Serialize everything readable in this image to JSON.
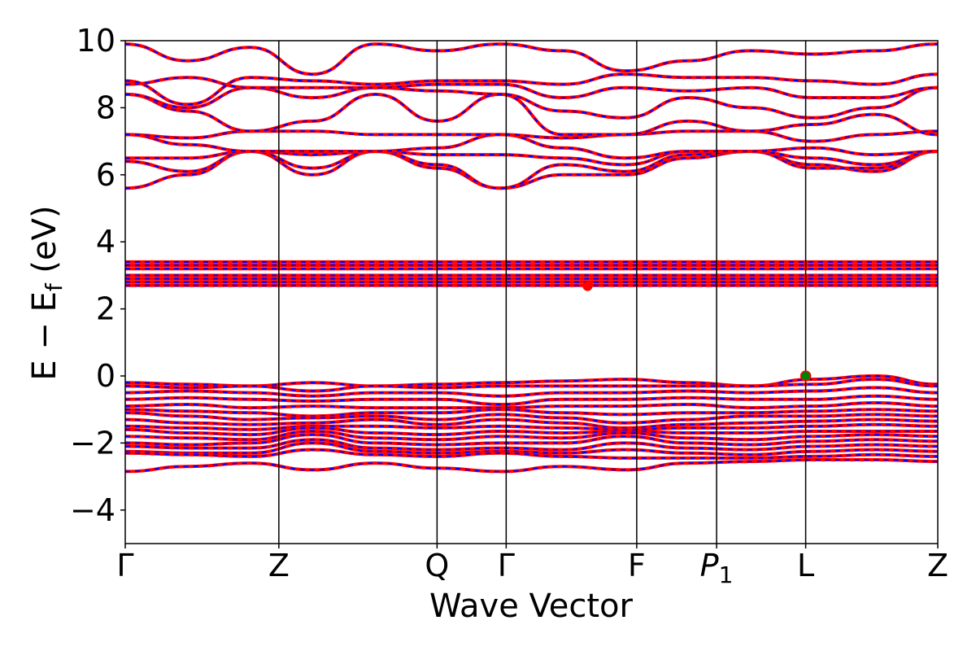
{
  "chart_data": {
    "type": "line",
    "title": "",
    "xlabel": "Wave Vector",
    "ylabel_main": "E − E",
    "ylabel_sub": "f",
    "ylabel_unit": " (eV)",
    "ylim": [
      -5,
      10
    ],
    "yticks": [
      -4,
      -2,
      0,
      2,
      4,
      6,
      8,
      10
    ],
    "ytick_labels": [
      "−4",
      "−2",
      "0",
      "2",
      "4",
      "6",
      "8",
      "10"
    ],
    "kpath_positions": [
      0,
      1.0,
      2.03,
      2.48,
      3.33,
      3.85,
      4.43,
      5.29
    ],
    "kpath_labels": [
      "Γ",
      "Z",
      "Q",
      "Γ",
      "F",
      "P",
      "L",
      "Z"
    ],
    "kpath_label_subscripts": [
      "",
      "",
      "",
      "",
      "",
      "1",
      "",
      ""
    ],
    "xlim": [
      0,
      5.29
    ],
    "grid": false,
    "colors": {
      "band_primary": "#ff0000",
      "band_overlay": "#0000ff",
      "cbm_marker": "#ff0000",
      "vbm_marker": "#008000",
      "vline": "#000000"
    },
    "cbm_point": {
      "x": 3.01,
      "y": 2.68
    },
    "vbm_point": {
      "x": 4.43,
      "y": 0.0
    },
    "series": [
      {
        "values": [
          5.6,
          6.0,
          6.7,
          6.6,
          6.7,
          6.2,
          5.6,
          6.0,
          6.0,
          6.5,
          6.7,
          6.3,
          6.1,
          6.7
        ]
      },
      {
        "values": [
          6.4,
          6.1,
          6.7,
          6.0,
          6.7,
          6.3,
          5.6,
          6.3,
          6.1,
          6.6,
          6.7,
          6.2,
          6.2,
          6.7
        ]
      },
      {
        "values": [
          6.5,
          6.5,
          6.7,
          6.2,
          6.7,
          6.6,
          6.6,
          6.5,
          6.3,
          6.7,
          6.7,
          6.5,
          6.3,
          6.7
        ]
      },
      {
        "values": [
          7.2,
          6.9,
          6.7,
          6.7,
          6.7,
          6.8,
          7.2,
          6.8,
          6.5,
          6.7,
          6.7,
          6.8,
          6.6,
          6.7
        ]
      },
      {
        "values": [
          7.2,
          7.1,
          7.3,
          7.3,
          7.2,
          7.2,
          7.2,
          7.1,
          7.2,
          7.3,
          7.3,
          7.0,
          7.2,
          7.3
        ]
      },
      {
        "values": [
          8.4,
          7.9,
          7.3,
          7.6,
          8.4,
          7.6,
          8.4,
          7.2,
          7.2,
          7.6,
          7.3,
          7.5,
          7.8,
          7.2
        ]
      },
      {
        "values": [
          8.4,
          8.0,
          8.6,
          8.3,
          8.6,
          8.5,
          8.4,
          7.9,
          7.7,
          8.3,
          8.0,
          7.7,
          8.0,
          8.6
        ]
      },
      {
        "values": [
          8.7,
          8.9,
          8.6,
          8.6,
          8.6,
          8.7,
          8.7,
          8.3,
          8.6,
          8.5,
          8.6,
          8.3,
          8.3,
          8.6
        ]
      },
      {
        "values": [
          8.8,
          8.1,
          8.9,
          8.8,
          8.7,
          8.8,
          8.8,
          8.7,
          9.0,
          8.9,
          8.9,
          8.8,
          8.7,
          9.0
        ]
      },
      {
        "values": [
          9.9,
          9.4,
          9.8,
          9.0,
          9.9,
          9.7,
          9.9,
          9.7,
          9.1,
          9.4,
          9.7,
          9.6,
          9.7,
          9.9
        ]
      },
      {
        "values": [
          2.7,
          2.7,
          2.7,
          2.7,
          2.7,
          2.7,
          2.7,
          2.7,
          2.7,
          2.7,
          2.7,
          2.7,
          2.7,
          2.7
        ]
      },
      {
        "values": [
          2.8,
          2.8,
          2.8,
          2.8,
          2.8,
          2.8,
          2.8,
          2.8,
          2.8,
          2.8,
          2.8,
          2.8,
          2.8,
          2.8
        ]
      },
      {
        "values": [
          2.9,
          2.9,
          2.9,
          2.9,
          2.9,
          2.9,
          2.9,
          2.9,
          2.9,
          2.9,
          2.9,
          2.9,
          2.9,
          2.9
        ]
      },
      {
        "values": [
          3.0,
          3.0,
          3.0,
          3.0,
          3.0,
          3.0,
          3.0,
          3.0,
          3.0,
          3.0,
          3.0,
          3.0,
          3.0,
          3.0
        ]
      },
      {
        "values": [
          3.2,
          3.2,
          3.2,
          3.2,
          3.2,
          3.2,
          3.2,
          3.2,
          3.2,
          3.2,
          3.2,
          3.2,
          3.2,
          3.2
        ]
      },
      {
        "values": [
          3.3,
          3.3,
          3.3,
          3.3,
          3.3,
          3.3,
          3.3,
          3.3,
          3.3,
          3.3,
          3.3,
          3.3,
          3.3,
          3.3
        ]
      },
      {
        "values": [
          3.4,
          3.4,
          3.4,
          3.4,
          3.4,
          3.4,
          3.4,
          3.4,
          3.4,
          3.4,
          3.4,
          3.4,
          3.4,
          3.4
        ]
      },
      {
        "values": [
          -0.2,
          -0.25,
          -0.3,
          -0.2,
          -0.3,
          -0.25,
          -0.2,
          -0.15,
          -0.1,
          -0.2,
          -0.3,
          -0.1,
          0.0,
          -0.25
        ]
      },
      {
        "values": [
          -0.3,
          -0.35,
          -0.3,
          -0.45,
          -0.3,
          -0.35,
          -0.3,
          -0.3,
          -0.3,
          -0.3,
          -0.3,
          -0.25,
          -0.1,
          -0.3
        ]
      },
      {
        "values": [
          -0.5,
          -0.45,
          -0.5,
          -0.6,
          -0.5,
          -0.5,
          -0.6,
          -0.5,
          -0.5,
          -0.45,
          -0.5,
          -0.45,
          -0.35,
          -0.5
        ]
      },
      {
        "values": [
          -0.7,
          -0.65,
          -0.7,
          -0.75,
          -0.7,
          -0.7,
          -0.85,
          -0.7,
          -0.7,
          -0.65,
          -0.7,
          -0.7,
          -0.6,
          -0.7
        ]
      },
      {
        "values": [
          -0.9,
          -0.85,
          -0.95,
          -0.9,
          -0.95,
          -0.95,
          -0.95,
          -0.9,
          -0.9,
          -0.85,
          -0.95,
          -0.9,
          -0.8,
          -0.9
        ]
      },
      {
        "values": [
          -1.0,
          -1.05,
          -1.1,
          -1.2,
          -1.1,
          -1.1,
          -1.0,
          -1.1,
          -1.15,
          -1.1,
          -1.1,
          -1.05,
          -1.0,
          -1.05
        ]
      },
      {
        "values": [
          -1.1,
          -1.2,
          -1.3,
          -1.25,
          -1.2,
          -1.3,
          -1.15,
          -1.25,
          -1.4,
          -1.3,
          -1.2,
          -1.2,
          -1.15,
          -1.2
        ]
      },
      {
        "values": [
          -1.3,
          -1.4,
          -1.45,
          -1.4,
          -1.3,
          -1.45,
          -1.3,
          -1.4,
          -1.55,
          -1.45,
          -1.4,
          -1.35,
          -1.3,
          -1.35
        ]
      },
      {
        "values": [
          -1.5,
          -1.55,
          -1.6,
          -1.5,
          -1.5,
          -1.55,
          -1.5,
          -1.55,
          -1.6,
          -1.55,
          -1.55,
          -1.5,
          -1.45,
          -1.5
        ]
      },
      {
        "values": [
          -1.6,
          -1.7,
          -1.75,
          -1.55,
          -1.7,
          -1.75,
          -1.65,
          -1.7,
          -1.65,
          -1.7,
          -1.7,
          -1.65,
          -1.65,
          -1.65
        ]
      },
      {
        "values": [
          -1.8,
          -1.85,
          -1.9,
          -1.65,
          -1.85,
          -1.9,
          -1.8,
          -1.85,
          -1.7,
          -1.85,
          -1.9,
          -1.8,
          -1.75,
          -1.8
        ]
      },
      {
        "values": [
          -2.0,
          -2.05,
          -2.0,
          -1.75,
          -2.0,
          -2.05,
          -2.0,
          -2.0,
          -1.8,
          -2.0,
          -2.05,
          -1.95,
          -1.9,
          -1.95
        ]
      },
      {
        "values": [
          -2.1,
          -2.15,
          -2.15,
          -1.9,
          -2.15,
          -2.2,
          -2.15,
          -2.2,
          -2.0,
          -2.15,
          -2.2,
          -2.1,
          -2.05,
          -2.1
        ]
      },
      {
        "values": [
          -2.25,
          -2.3,
          -2.3,
          -2.0,
          -2.25,
          -2.3,
          -2.25,
          -2.3,
          -2.2,
          -2.3,
          -2.35,
          -2.25,
          -2.2,
          -2.25
        ]
      },
      {
        "values": [
          -2.3,
          -2.35,
          -2.4,
          -2.2,
          -2.35,
          -2.4,
          -2.3,
          -2.4,
          -2.45,
          -2.45,
          -2.45,
          -2.4,
          -2.35,
          -2.4
        ]
      },
      {
        "values": [
          -2.85,
          -2.7,
          -2.6,
          -2.8,
          -2.6,
          -2.75,
          -2.85,
          -2.7,
          -2.8,
          -2.6,
          -2.55,
          -2.5,
          -2.5,
          -2.55
        ]
      }
    ]
  }
}
